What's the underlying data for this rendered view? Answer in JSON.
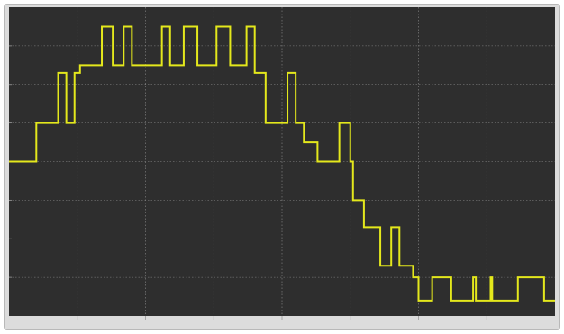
{
  "chart_data": {
    "type": "line",
    "step": "post",
    "title": "",
    "xlabel": "",
    "ylabel": "",
    "colors": {
      "background": "#2e2e2e",
      "grid": "#8a8a8a",
      "line": "#e4e81c",
      "frame": "#dcdcdc"
    },
    "grid": true,
    "xlim": [
      0,
      100
    ],
    "ylim": [
      0,
      8
    ],
    "x_gridlines": [
      12.5,
      25,
      37.5,
      50,
      62.5,
      75,
      87.5
    ],
    "y_gridlines": [
      1,
      2,
      3,
      4,
      5,
      6,
      7
    ],
    "series": [
      {
        "x": [
          0,
          5,
          9,
          10.5,
          12,
          13,
          17,
          19,
          21,
          22.5,
          28,
          29.5,
          32,
          34.5,
          38,
          40.5,
          43.5,
          45,
          47,
          51,
          52.5,
          54,
          56.5,
          59,
          60.5,
          62.5,
          63,
          65,
          68,
          70,
          71,
          71.5,
          74,
          74.5,
          75,
          77.5,
          81,
          82,
          85,
          85.5,
          87,
          88.2,
          88.5,
          93,
          93.2,
          98,
          98.2,
          100
        ],
        "y": [
          4,
          5,
          6.3,
          5,
          6.3,
          6.5,
          7.5,
          6.5,
          7.5,
          6.5,
          7.5,
          6.5,
          7.5,
          6.5,
          7.5,
          6.5,
          7.5,
          6.3,
          5,
          6.3,
          5,
          4.5,
          4,
          4,
          5,
          4,
          3,
          2.3,
          1.3,
          2.3,
          2.3,
          1.3,
          1,
          1,
          0.4,
          1,
          0.4,
          0.4,
          1,
          0.4,
          0.4,
          1,
          0.4,
          0.4,
          1,
          0.4,
          0.4,
          0.4
        ]
      }
    ]
  }
}
